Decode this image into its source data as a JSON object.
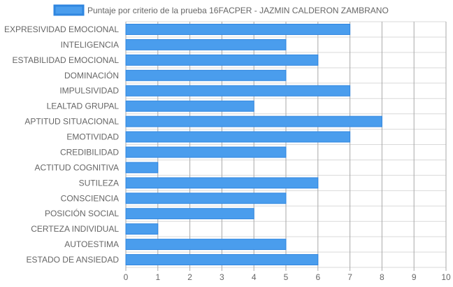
{
  "chart_data": {
    "type": "bar",
    "orientation": "horizontal",
    "legend": {
      "label": "Puntaje por criterio de la prueba 16FACPER - JAZMIN CALDERON ZAMBRANO",
      "position": "top"
    },
    "categories": [
      "EXPRESIVIDAD EMOCIONAL",
      "INTELIGENCIA",
      "ESTABILIDAD EMOCIONAL",
      "DOMINACIÓN",
      "IMPULSIVIDAD",
      "LEALTAD GRUPAL",
      "APTITUD SITUACIONAL",
      "EMOTIVIDAD",
      "CREDIBILIDAD",
      "ACTITUD COGNITIVA",
      "SUTILEZA",
      "CONSCIENCIA",
      "POSICIÓN SOCIAL",
      "CERTEZA INDIVIDUAL",
      "AUTOESTIMA",
      "ESTADO DE ANSIEDAD"
    ],
    "values": [
      7,
      5,
      6,
      5,
      7,
      4,
      8,
      7,
      5,
      1,
      6,
      5,
      4,
      1,
      5,
      6
    ],
    "xlim": [
      0,
      10
    ],
    "xticks": [
      "0",
      "1",
      "2",
      "3",
      "4",
      "5",
      "6",
      "7",
      "8",
      "9",
      "10"
    ],
    "grid": true,
    "colors": {
      "bar_fill": "#4a9ded",
      "bar_border": "#2f86e0",
      "grid": "#d9d9d9",
      "axis": "#a9a9a9",
      "text": "#666666"
    }
  }
}
